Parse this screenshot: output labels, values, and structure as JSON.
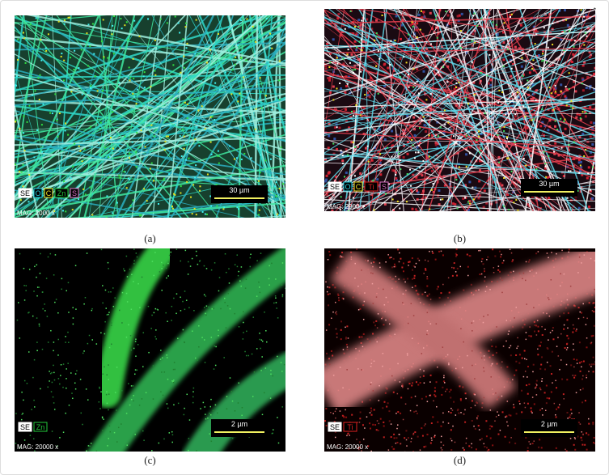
{
  "panels": [
    {
      "caption": "(a)",
      "legend": [
        {
          "label": "SE",
          "color": "#ffffff"
        },
        {
          "label": "O",
          "color": "#22d3e6"
        },
        {
          "label": "C",
          "color": "#f0e020"
        },
        {
          "label": "Zn",
          "color": "#22c83a"
        },
        {
          "label": "S",
          "color": "#e070c8"
        }
      ],
      "scale_bar": "30 µm",
      "magnification": "MAG: 2000 x"
    },
    {
      "caption": "(b)",
      "legend": [
        {
          "label": "SE",
          "color": "#ffffff"
        },
        {
          "label": "O",
          "color": "#22d3e6"
        },
        {
          "label": "C",
          "color": "#f0e020"
        },
        {
          "label": "Ti",
          "color": "#e02020"
        },
        {
          "label": "S",
          "color": "#e070c8"
        }
      ],
      "scale_bar": "30 µm",
      "magnification": "MAG: 2000 x"
    },
    {
      "caption": "(c)",
      "legend": [
        {
          "label": "SE",
          "color": "#ffffff"
        },
        {
          "label": "Zn",
          "color": "#22c83a"
        }
      ],
      "scale_bar": "2 µm",
      "magnification": "MAG: 20000 x"
    },
    {
      "caption": "(d)",
      "legend": [
        {
          "label": "SE",
          "color": "#ffffff"
        },
        {
          "label": "Ti",
          "color": "#e02020"
        }
      ],
      "scale_bar": "2 µm",
      "magnification": "MAG: 20000 x"
    }
  ]
}
